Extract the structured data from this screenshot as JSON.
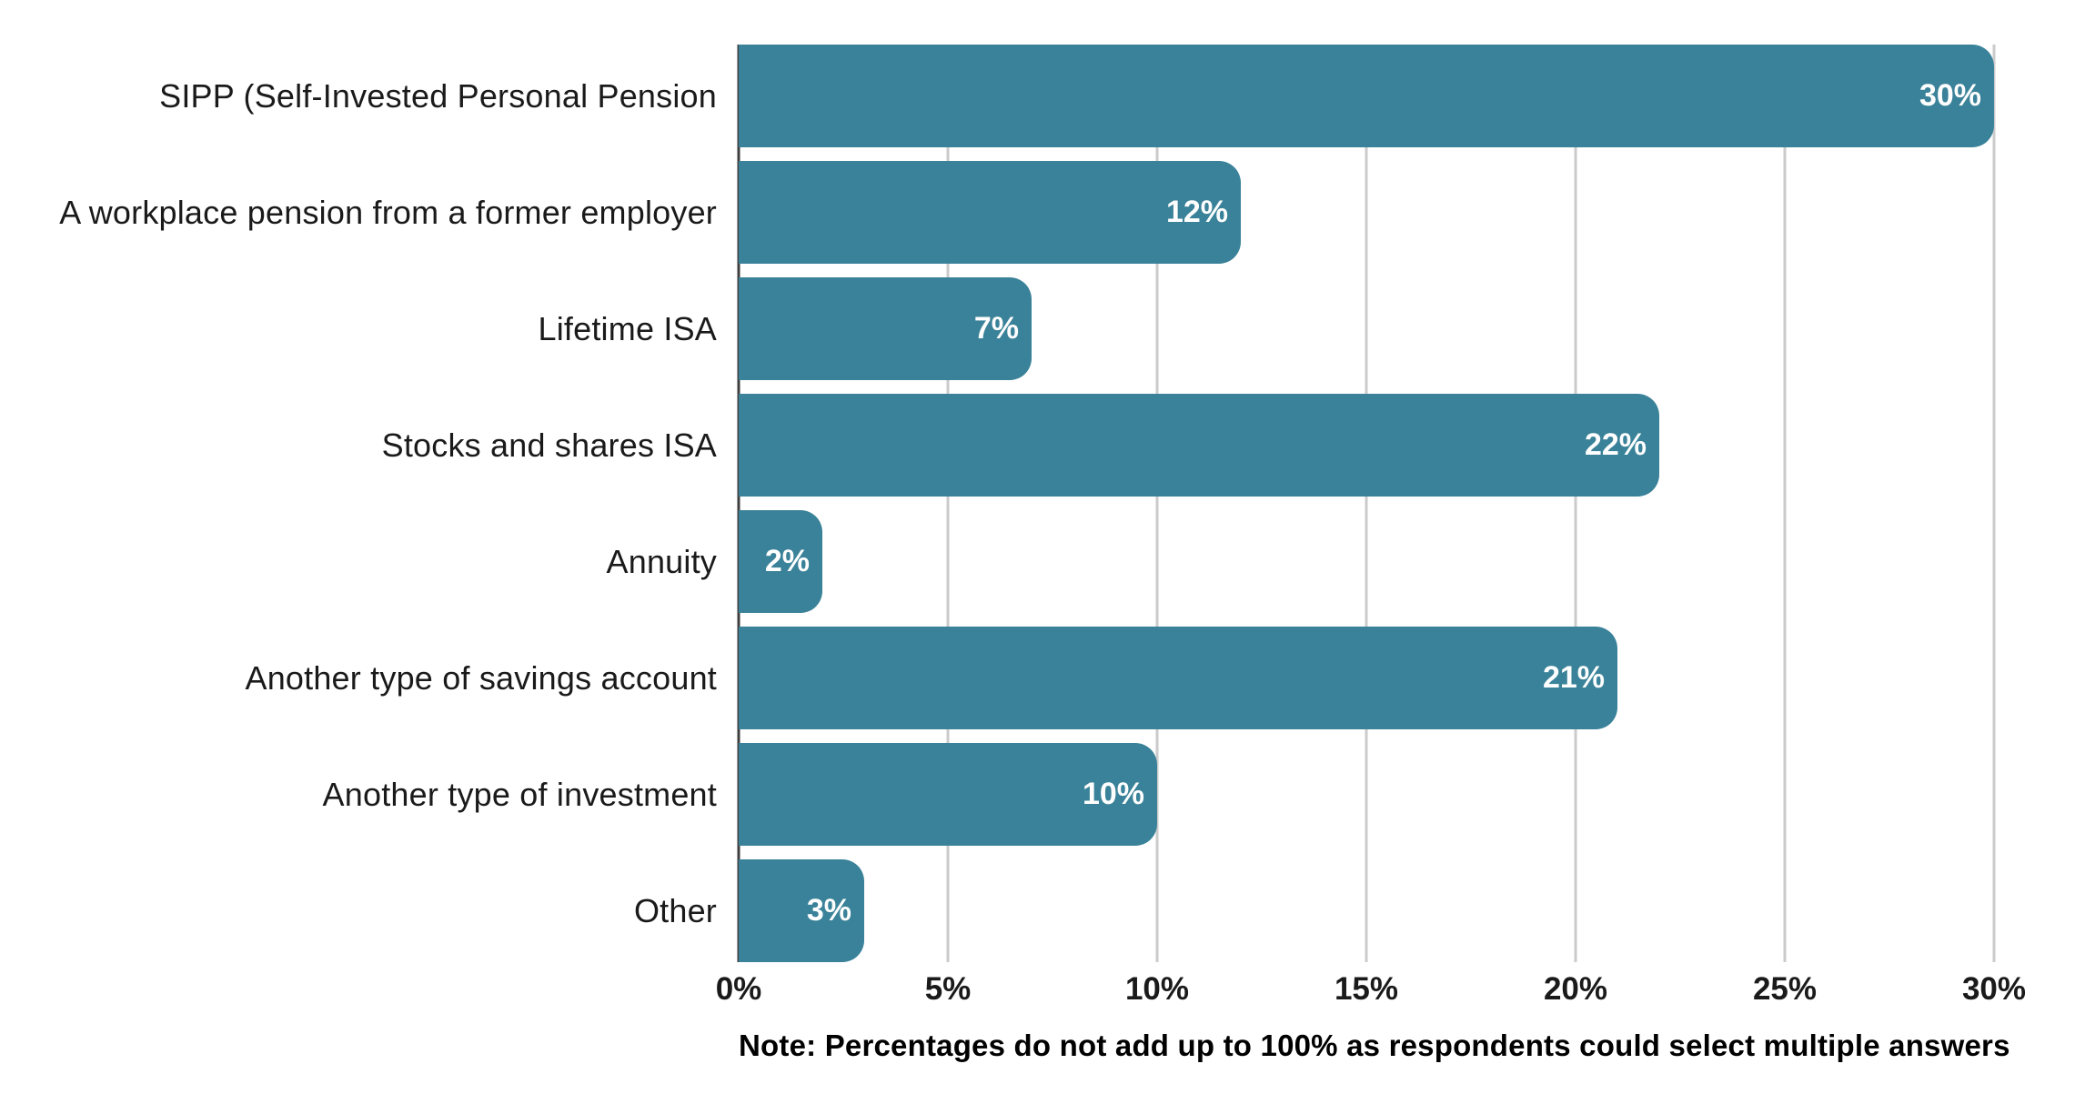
{
  "chart_data": {
    "type": "bar",
    "orientation": "horizontal",
    "title": "",
    "xlabel": "",
    "ylabel": "",
    "categories": [
      "SIPP (Self-Invested Personal Pension",
      "A workplace pension from a former employer",
      "Lifetime ISA",
      "Stocks and shares ISA",
      "Annuity",
      "Another type of savings account",
      "Another type of investment",
      "Other"
    ],
    "values": [
      30,
      12,
      7,
      22,
      2,
      21,
      10,
      3
    ],
    "value_labels": [
      "30%",
      "12%",
      "7%",
      "22%",
      "2%",
      "21%",
      "10%",
      "3%"
    ],
    "xlim": [
      0,
      30
    ],
    "x_tick_values": [
      0,
      5,
      10,
      15,
      20,
      25,
      30
    ],
    "x_tick_labels": [
      "0%",
      "5%",
      "10%",
      "15%",
      "20%",
      "25%",
      "30%"
    ],
    "grid": true,
    "legend": "none",
    "note": "Note: Percentages do not add up to 100% as respondents could select multiple answers",
    "colors": {
      "bar": "#3a8299",
      "gridline": "#cbcbcb",
      "axis_line": "#3f3f3f",
      "label_text": "#1a1a1a",
      "tick_text": "#1a1a1a",
      "value_text": "#ffffff",
      "note_text": "#000000",
      "background": "#ffffff"
    }
  }
}
